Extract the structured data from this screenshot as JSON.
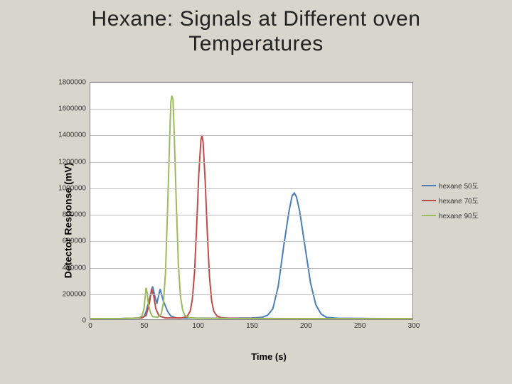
{
  "title_line1": "Hexane: Signals at Different oven",
  "title_line2": "Temperatures",
  "chart": {
    "type": "line",
    "xlabel": "Time (s)",
    "ylabel": "Detector Response (mV)",
    "xlim": [
      0,
      300
    ],
    "ylim": [
      0,
      1800000
    ],
    "xtick_step": 50,
    "ytick_step": 200000,
    "xticks": [
      "0",
      "50",
      "100",
      "150",
      "200",
      "250",
      "300"
    ],
    "yticks": [
      "0",
      "200000",
      "400000",
      "600000",
      "800000",
      "1000000",
      "1200000",
      "1400000",
      "1600000",
      "1800000"
    ],
    "background_color": "#d8d5cc",
    "plot_bg": "#ffffff",
    "grid_color": "#bfbfbf",
    "border_color": "#888888",
    "line_width": 2,
    "series": [
      {
        "name": "hexane 50도",
        "color": "#4a7ebb",
        "points": [
          [
            0,
            5000
          ],
          [
            20,
            5000
          ],
          [
            45,
            8000
          ],
          [
            50,
            20000
          ],
          [
            52,
            60000
          ],
          [
            55,
            150000
          ],
          [
            58,
            250000
          ],
          [
            60,
            180000
          ],
          [
            62,
            120000
          ],
          [
            65,
            230000
          ],
          [
            68,
            140000
          ],
          [
            72,
            60000
          ],
          [
            75,
            25000
          ],
          [
            80,
            10000
          ],
          [
            120,
            8000
          ],
          [
            150,
            10000
          ],
          [
            160,
            15000
          ],
          [
            165,
            30000
          ],
          [
            170,
            80000
          ],
          [
            175,
            250000
          ],
          [
            180,
            550000
          ],
          [
            185,
            820000
          ],
          [
            188,
            940000
          ],
          [
            190,
            960000
          ],
          [
            192,
            930000
          ],
          [
            195,
            820000
          ],
          [
            200,
            550000
          ],
          [
            205,
            280000
          ],
          [
            210,
            110000
          ],
          [
            215,
            40000
          ],
          [
            220,
            15000
          ],
          [
            230,
            8000
          ],
          [
            260,
            6000
          ],
          [
            300,
            5000
          ]
        ]
      },
      {
        "name": "hexane 70도",
        "color": "#be4b48",
        "points": [
          [
            0,
            5000
          ],
          [
            30,
            6000
          ],
          [
            48,
            10000
          ],
          [
            52,
            30000
          ],
          [
            55,
            120000
          ],
          [
            57,
            230000
          ],
          [
            59,
            180000
          ],
          [
            61,
            80000
          ],
          [
            64,
            25000
          ],
          [
            70,
            10000
          ],
          [
            85,
            10000
          ],
          [
            90,
            20000
          ],
          [
            93,
            60000
          ],
          [
            95,
            150000
          ],
          [
            97,
            350000
          ],
          [
            99,
            700000
          ],
          [
            101,
            1100000
          ],
          [
            103,
            1360000
          ],
          [
            104,
            1400000
          ],
          [
            105,
            1350000
          ],
          [
            107,
            1050000
          ],
          [
            109,
            650000
          ],
          [
            111,
            320000
          ],
          [
            113,
            140000
          ],
          [
            115,
            60000
          ],
          [
            118,
            25000
          ],
          [
            122,
            12000
          ],
          [
            130,
            8000
          ],
          [
            160,
            6000
          ],
          [
            200,
            5000
          ],
          [
            260,
            5000
          ],
          [
            300,
            5000
          ]
        ]
      },
      {
        "name": "hexane 90도",
        "color": "#9bbb59",
        "points": [
          [
            0,
            5000
          ],
          [
            30,
            6000
          ],
          [
            45,
            10000
          ],
          [
            48,
            25000
          ],
          [
            50,
            80000
          ],
          [
            51,
            160000
          ],
          [
            52,
            240000
          ],
          [
            53,
            200000
          ],
          [
            54,
            120000
          ],
          [
            56,
            50000
          ],
          [
            58,
            20000
          ],
          [
            63,
            15000
          ],
          [
            66,
            40000
          ],
          [
            68,
            120000
          ],
          [
            70,
            350000
          ],
          [
            72,
            850000
          ],
          [
            74,
            1400000
          ],
          [
            75,
            1650000
          ],
          [
            76,
            1700000
          ],
          [
            77,
            1670000
          ],
          [
            78,
            1450000
          ],
          [
            80,
            900000
          ],
          [
            82,
            420000
          ],
          [
            84,
            170000
          ],
          [
            86,
            70000
          ],
          [
            88,
            30000
          ],
          [
            92,
            12000
          ],
          [
            100,
            8000
          ],
          [
            130,
            6000
          ],
          [
            180,
            5000
          ],
          [
            260,
            5000
          ],
          [
            300,
            5000
          ]
        ]
      }
    ]
  }
}
